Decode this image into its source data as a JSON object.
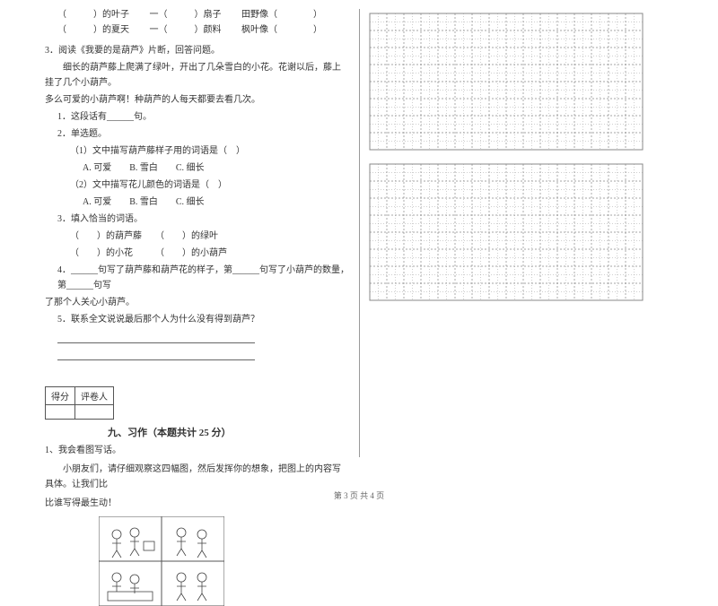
{
  "fill_blanks": {
    "row1": {
      "a": "（　　　）的叶子",
      "b": "一（　　　）扇子",
      "c": "田野像（　　　　）"
    },
    "row2": {
      "a": "（　　　）的夏天",
      "b": "一（　　　）颜料",
      "c": "枫叶像（　　　　）"
    }
  },
  "q3": {
    "title": "3．阅读《我要的是葫芦》片断，回答问题。",
    "passage1": "　　细长的葫芦藤上爬满了绿叶，开出了几朵雪白的小花。花谢以后，藤上挂了几个小葫芦。",
    "passage2": "多么可爱的小葫芦啊！种葫芦的人每天都要去看几次。",
    "sub1": "1．这段话有______句。",
    "sub2": "2．单选题。",
    "sub2_1": "（1）文中描写葫芦藤样子用的词语是（　）",
    "sub2_1_opts": "A. 可爱　　B. 雪白　　C. 细长",
    "sub2_2": "（2）文中描写花儿颜色的词语是（　）",
    "sub2_2_opts": "A. 可爱　　B. 雪白　　C. 细长",
    "sub3": "3．填入恰当的词语。",
    "sub3_a": "（　　）的葫芦藤　　（　　）的绿叶",
    "sub3_b": "（　　）的小花　　　（　　）的小葫芦",
    "sub4": "4．______句写了葫芦藤和葫芦花的样子，第______句写了小葫芦的数量，第______句写",
    "sub4b": "了那个人关心小葫芦。",
    "sub5": "5．联系全文说说最后那个人为什么没有得到葫芦？"
  },
  "score_labels": {
    "a": "得分",
    "b": "评卷人"
  },
  "section9": {
    "title": "九、习作（本题共计 25 分）",
    "q1": "1、我会看图写话。",
    "instr": "　　小朋友们，请仔细观察这四幅图，然后发挥你的想象，把图上的内容写具体。让我们比",
    "instr2": "比谁写得最生动！"
  },
  "grid": {
    "cols": 16,
    "rows": 8,
    "cell": 19,
    "stroke": "#888888",
    "dash": "2,2"
  },
  "footer": "第 3 页 共 4 页",
  "colors": {
    "text": "#333333",
    "line": "#666666",
    "grid": "#888888",
    "bg": "#ffffff"
  }
}
